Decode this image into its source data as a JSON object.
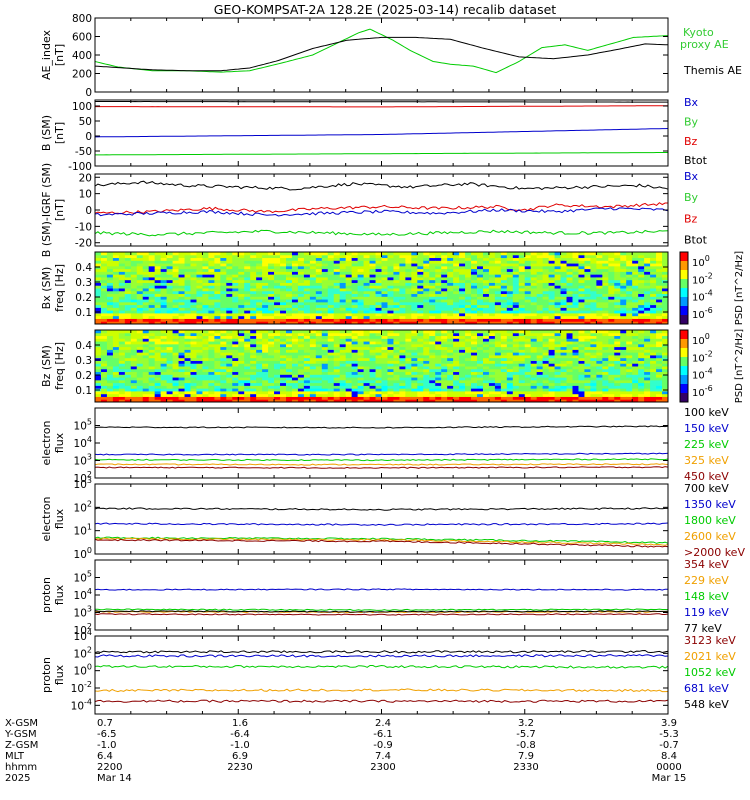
{
  "title": "GEO-KOMPSAT-2A 128.2E (2025-03-14) recalib dataset",
  "colors": {
    "black": "#000000",
    "red": "#e00000",
    "green": "#00cc00",
    "blue": "#0000cc",
    "orange": "#f0a000",
    "darkred": "#8b0000",
    "bright_green": "#33cc33"
  },
  "chart_data": [
    {
      "id": "ae",
      "type": "line",
      "ylabel": "AE_index\n[nT]",
      "ylim": [
        0,
        800
      ],
      "yticks": [
        0,
        200,
        400,
        600,
        800
      ],
      "scale": "linear",
      "series": [
        {
          "name": "Kyoto proxy AE",
          "color": "#00cc00",
          "x": [
            0,
            0.04,
            0.1,
            0.16,
            0.22,
            0.27,
            0.33,
            0.38,
            0.42,
            0.46,
            0.48,
            0.52,
            0.55,
            0.59,
            0.62,
            0.66,
            0.7,
            0.74,
            0.78,
            0.82,
            0.86,
            0.9,
            0.94,
            1.0
          ],
          "y": [
            330,
            270,
            230,
            230,
            215,
            230,
            320,
            400,
            520,
            640,
            680,
            560,
            450,
            330,
            300,
            280,
            210,
            330,
            480,
            510,
            450,
            520,
            590,
            610
          ]
        },
        {
          "name": "Themis AE",
          "color": "#000000",
          "x": [
            0,
            0.05,
            0.1,
            0.16,
            0.22,
            0.27,
            0.32,
            0.38,
            0.44,
            0.5,
            0.56,
            0.62,
            0.68,
            0.74,
            0.8,
            0.86,
            0.92,
            0.96,
            1.0
          ],
          "y": [
            280,
            260,
            240,
            230,
            230,
            260,
            340,
            470,
            560,
            590,
            590,
            570,
            470,
            380,
            360,
            400,
            470,
            520,
            510
          ]
        }
      ],
      "legend": [
        "Kyoto",
        "proxy AE",
        "Themis AE"
      ]
    },
    {
      "id": "bsm",
      "type": "line",
      "ylabel": "B (SM)\n[nT]",
      "ylim": [
        -100,
        120
      ],
      "yticks": [
        -100,
        -50,
        0,
        50,
        100
      ],
      "scale": "linear",
      "series": [
        {
          "name": "Btot",
          "color": "#000000",
          "x": [
            0,
            1
          ],
          "y": [
            115,
            113
          ]
        },
        {
          "name": "Bz",
          "color": "#e00000",
          "x": [
            0,
            0.5,
            1
          ],
          "y": [
            98,
            97,
            101
          ]
        },
        {
          "name": "Bx",
          "color": "#0000cc",
          "x": [
            0,
            0.5,
            1
          ],
          "y": [
            -3,
            5,
            25
          ]
        },
        {
          "name": "By",
          "color": "#00cc00",
          "x": [
            0,
            1
          ],
          "y": [
            -63,
            -55
          ]
        }
      ],
      "legend": [
        "Bx",
        "By",
        "Bz",
        "Btot"
      ]
    },
    {
      "id": "bigrf",
      "type": "line",
      "ylabel": "B (SM)-IGRF (SM)\n[nT]",
      "ylim": [
        -22,
        22
      ],
      "yticks": [
        -20,
        -10,
        0,
        10,
        20
      ],
      "scale": "linear",
      "series": [
        {
          "name": "Btot",
          "color": "#000000",
          "x": [
            0,
            0.08,
            0.16,
            0.25,
            0.35,
            0.45,
            0.55,
            0.65,
            0.75,
            0.85,
            0.95,
            1.0
          ],
          "y": [
            15,
            17,
            15,
            14,
            13,
            16,
            14,
            16,
            13,
            14,
            15,
            13
          ]
        },
        {
          "name": "Bz",
          "color": "#e00000",
          "x": [
            0,
            0.1,
            0.2,
            0.3,
            0.4,
            0.5,
            0.6,
            0.7,
            0.75,
            0.8,
            0.9,
            1.0
          ],
          "y": [
            -2,
            -1,
            1,
            -1,
            1,
            2,
            1,
            2,
            0,
            3,
            2,
            4
          ]
        },
        {
          "name": "Bx",
          "color": "#0000cc",
          "x": [
            0,
            0.1,
            0.2,
            0.3,
            0.4,
            0.5,
            0.6,
            0.7,
            0.8,
            0.9,
            1.0
          ],
          "y": [
            -3,
            -2,
            -1,
            -3,
            -2,
            -1,
            -2,
            0,
            -1,
            1,
            0
          ]
        },
        {
          "name": "By",
          "color": "#00cc00",
          "x": [
            0,
            0.1,
            0.2,
            0.3,
            0.4,
            0.5,
            0.6,
            0.7,
            0.8,
            0.9,
            1.0
          ],
          "y": [
            -14,
            -15,
            -14,
            -13,
            -14,
            -15,
            -14,
            -13,
            -14,
            -14,
            -13
          ]
        }
      ],
      "legend": [
        "Bx",
        "By",
        "Bz",
        "Btot"
      ]
    },
    {
      "id": "bxspec",
      "type": "heatmap",
      "ylabel": "Bx (SM)\nfreq [Hz]",
      "ylim": [
        0.02,
        0.5
      ],
      "yticks": [
        0.1,
        0.2,
        0.3,
        0.4
      ],
      "scale": "linear",
      "colorbar": {
        "label": "PSD [nT^2/Hz]",
        "ticks": [
          "10^0",
          "10^-2",
          "10^-4",
          "10^-6"
        ]
      }
    },
    {
      "id": "bzspec",
      "type": "heatmap",
      "ylabel": "Bz (SM)\nfreq [Hz]",
      "ylim": [
        0.02,
        0.5
      ],
      "yticks": [
        0.1,
        0.2,
        0.3,
        0.4
      ],
      "scale": "linear",
      "colorbar": {
        "label": "PSD [nT^2/Hz]",
        "ticks": [
          "10^0",
          "10^-2",
          "10^-4",
          "10^-6"
        ]
      }
    },
    {
      "id": "elec_low",
      "type": "line",
      "ylabel": "electron\nflux",
      "ylim": [
        100,
        1000000
      ],
      "yticks": [
        "10^2",
        "10^3",
        "10^4",
        "10^5"
      ],
      "scale": "log",
      "series": [
        {
          "name": "100 keV",
          "color": "#000000",
          "x": [
            0,
            0.5,
            1
          ],
          "y": [
            80000,
            75000,
            90000
          ]
        },
        {
          "name": "150 keV",
          "color": "#0000cc",
          "x": [
            0,
            0.5,
            1
          ],
          "y": [
            2200,
            2200,
            2500
          ]
        },
        {
          "name": "225 keV",
          "color": "#00cc00",
          "x": [
            0,
            0.5,
            1
          ],
          "y": [
            1100,
            1050,
            1200
          ]
        },
        {
          "name": "325 keV",
          "color": "#f0a000",
          "x": [
            0,
            0.5,
            1
          ],
          "y": [
            600,
            580,
            620
          ]
        },
        {
          "name": "450 keV",
          "color": "#8b0000",
          "x": [
            0,
            0.5,
            1
          ],
          "y": [
            400,
            380,
            420
          ]
        }
      ],
      "legend": [
        "100 keV",
        "150 keV",
        "225 keV",
        "325 keV",
        "450 keV"
      ]
    },
    {
      "id": "elec_high",
      "type": "line",
      "ylabel": "electron\nflux",
      "ylim": [
        1,
        1000
      ],
      "yticks": [
        "10^0",
        "10^1",
        "10^2",
        "10^3"
      ],
      "scale": "log",
      "series": [
        {
          "name": "700 keV",
          "color": "#000000",
          "x": [
            0,
            0.5,
            1
          ],
          "y": [
            90,
            80,
            90
          ]
        },
        {
          "name": "1350 keV",
          "color": "#0000cc",
          "x": [
            0,
            0.5,
            1
          ],
          "y": [
            20,
            18,
            20
          ]
        },
        {
          "name": "1800 keV",
          "color": "#00cc00",
          "x": [
            0,
            0.5,
            1
          ],
          "y": [
            5,
            4.5,
            3
          ]
        },
        {
          "name": "2600 keV",
          "color": "#f0a000",
          "x": [
            0,
            0.5,
            1
          ],
          "y": [
            4.5,
            4,
            2.5
          ]
        },
        {
          "name": ">2000 keV",
          "color": "#8b0000",
          "x": [
            0,
            0.5,
            1
          ],
          "y": [
            4,
            3.5,
            2
          ]
        }
      ],
      "legend": [
        "700 keV",
        "1350 keV",
        "1800 keV",
        "2600 keV",
        ">2000 keV"
      ]
    },
    {
      "id": "proton_low",
      "type": "line",
      "ylabel": "proton\nflux",
      "ylim": [
        100,
        1000000
      ],
      "yticks": [
        "10^2",
        "10^3",
        "10^4",
        "10^5"
      ],
      "scale": "log",
      "series": [
        {
          "name": "354 keV",
          "color": "#8b0000",
          "x": [
            0,
            0.5,
            1
          ],
          "y": [
            800,
            750,
            820
          ]
        },
        {
          "name": "229 keV",
          "color": "#f0a000",
          "x": [
            0,
            0.5,
            1
          ],
          "y": [
            1100,
            1050,
            1100
          ]
        },
        {
          "name": "148 keV",
          "color": "#00cc00",
          "x": [
            0,
            0.5,
            1
          ],
          "y": [
            1500,
            1400,
            1500
          ]
        },
        {
          "name": "119 keV",
          "color": "#0000cc",
          "x": [
            0,
            0.5,
            1
          ],
          "y": [
            20000,
            21000,
            20000
          ]
        },
        {
          "name": "77 keV",
          "color": "#000000",
          "x": [
            0,
            0.5,
            1
          ],
          "y": [
            1200,
            1100,
            1200
          ]
        }
      ],
      "legend": [
        "354 keV",
        "229 keV",
        "148 keV",
        "119 keV",
        "77 keV"
      ]
    },
    {
      "id": "proton_high",
      "type": "line",
      "ylabel": "proton\nflux",
      "ylim": [
        1e-05,
        10000
      ],
      "yticks": [
        "10^-4",
        "10^-2",
        "10^0",
        "10^2",
        "10^4"
      ],
      "scale": "log",
      "series": [
        {
          "name": "3123 keV",
          "color": "#8b0000",
          "x": [
            0,
            0.5,
            1
          ],
          "y": [
            0.0003,
            0.0003,
            0.0003
          ]
        },
        {
          "name": "2021 keV",
          "color": "#f0a000",
          "x": [
            0,
            0.5,
            1
          ],
          "y": [
            0.005,
            0.006,
            0.005
          ]
        },
        {
          "name": "1052 keV",
          "color": "#00cc00",
          "x": [
            0,
            0.5,
            1
          ],
          "y": [
            3,
            3,
            2.5
          ]
        },
        {
          "name": "681 keV",
          "color": "#0000cc",
          "x": [
            0,
            0.5,
            1
          ],
          "y": [
            50,
            50,
            55
          ]
        },
        {
          "name": "548 keV",
          "color": "#000000",
          "x": [
            0,
            0.5,
            1
          ],
          "y": [
            150,
            150,
            160
          ]
        }
      ],
      "legend": [
        "3123 keV",
        "2021 keV",
        "1052 keV",
        "681 keV",
        "548 keV"
      ]
    }
  ],
  "footer": {
    "row_labels": [
      "X-GSM",
      "Y-GSM",
      "Z-GSM",
      "MLT",
      "hhmm",
      "2025"
    ],
    "columns": [
      [
        "0.7",
        "-6.5",
        "-1.0",
        "6.4",
        "2200",
        "Mar 14"
      ],
      [
        "1.6",
        "-6.4",
        "-1.0",
        "6.9",
        "2230",
        ""
      ],
      [
        "2.4",
        "-6.1",
        "-0.9",
        "7.4",
        "2300",
        ""
      ],
      [
        "3.2",
        "-5.7",
        "-0.8",
        "7.9",
        "2330",
        ""
      ],
      [
        "3.9",
        "-5.3",
        "-0.7",
        "8.4",
        "0000",
        "Mar 15"
      ]
    ]
  }
}
